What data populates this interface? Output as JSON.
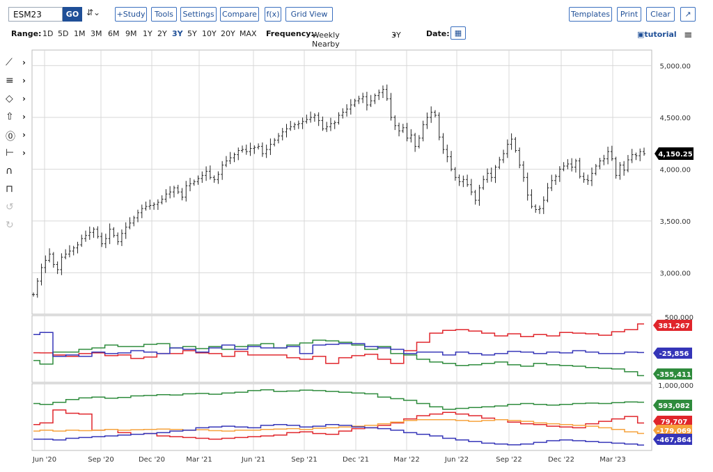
{
  "toolbar": {
    "symbol_value": "ESM23",
    "go_label": "GO",
    "symbol_menu_glyph": "⇵⌄",
    "study_label": "+Study",
    "tools_label": "Tools",
    "settings_label": "Settings",
    "compare_label": "Compare",
    "fx_label": "f(x)",
    "grid_view_label": "Grid View",
    "templates_label": "Templates",
    "print_label": "Print",
    "clear_label": "Clear",
    "expand_icon": "expand-icon"
  },
  "rangebar": {
    "range_label": "Range:",
    "ranges": [
      "1D",
      "5D",
      "1M",
      "3M",
      "6M",
      "9M",
      "1Y",
      "2Y",
      "3Y",
      "5Y",
      "10Y",
      "20Y",
      "MAX"
    ],
    "selected_range": "3Y",
    "frequency_label": "Frequency:",
    "frequency_value": "Weekly Nearby",
    "period_value": "3Y",
    "date_label": "Date:",
    "tutorial_label": "tutorial"
  },
  "sidebar_tools": [
    {
      "icon": "line-tool-icon",
      "glyph": "⟋"
    },
    {
      "icon": "fib-tool-icon",
      "glyph": "≡"
    },
    {
      "icon": "shape-tool-icon",
      "glyph": "◇"
    },
    {
      "icon": "arrow-tool-icon",
      "glyph": "⇧"
    },
    {
      "icon": "text-tool-icon",
      "glyph": "⓪"
    },
    {
      "icon": "measure-tool-icon",
      "glyph": "⊢"
    },
    {
      "icon": "magnet-icon",
      "glyph": "∩"
    },
    {
      "icon": "lock-icon",
      "glyph": "⊓"
    },
    {
      "icon": "undo-icon",
      "glyph": "↺"
    },
    {
      "icon": "redo-icon",
      "glyph": "↻"
    }
  ],
  "colors": {
    "red": "#e0252b",
    "green": "#2e8b3c",
    "blue": "#3535b8",
    "orange": "#f6a23c",
    "price": "#222222",
    "grid": "#d8d8d8"
  },
  "chart_data": [
    {
      "type": "ohlc",
      "panel": "price",
      "y_ticks": [
        "5,000.00",
        "4,500.00",
        "4,000.00",
        "3,500.00",
        "3,000.00"
      ],
      "ylim": [
        2600,
        5150
      ],
      "last_value_label": "4,150.25",
      "x_ticks": [
        "Jun '20",
        "Sep '20",
        "Dec '20",
        "Mar '21",
        "Jun '21",
        "Sep '21",
        "Dec '21",
        "Mar '22",
        "Jun '22",
        "Sep '22",
        "Dec '22",
        "Mar '23"
      ],
      "weekly_close": [
        2790,
        2920,
        3050,
        3120,
        3180,
        3080,
        3030,
        3150,
        3180,
        3210,
        3240,
        3270,
        3330,
        3360,
        3390,
        3420,
        3350,
        3280,
        3330,
        3420,
        3360,
        3300,
        3380,
        3440,
        3480,
        3530,
        3580,
        3620,
        3640,
        3650,
        3660,
        3680,
        3710,
        3760,
        3780,
        3820,
        3780,
        3730,
        3840,
        3860,
        3880,
        3910,
        3940,
        3980,
        3920,
        3900,
        3950,
        4040,
        4080,
        4110,
        4140,
        4180,
        4190,
        4170,
        4200,
        4210,
        4220,
        4150,
        4190,
        4240,
        4280,
        4320,
        4360,
        4390,
        4410,
        4430,
        4440,
        4460,
        4480,
        4500,
        4520,
        4470,
        4390,
        4410,
        4440,
        4450,
        4520,
        4550,
        4580,
        4620,
        4660,
        4680,
        4700,
        4620,
        4660,
        4710,
        4740,
        4770,
        4680,
        4500,
        4420,
        4370,
        4400,
        4300,
        4330,
        4220,
        4300,
        4430,
        4500,
        4550,
        4520,
        4310,
        4190,
        4120,
        4000,
        3920,
        3880,
        3900,
        3850,
        3780,
        3700,
        3820,
        3900,
        3960,
        3920,
        4020,
        4090,
        4150,
        4240,
        4290,
        4180,
        4040,
        3920,
        3750,
        3640,
        3610,
        3620,
        3700,
        3820,
        3890,
        3930,
        4000,
        4030,
        4050,
        4020,
        4080,
        3930,
        3900,
        3890,
        3960,
        4030,
        4080,
        4100,
        4170,
        4100,
        3940,
        4040,
        3990,
        4090,
        4140,
        4130,
        4170,
        4150
      ],
      "title": ""
    },
    {
      "type": "line",
      "panel": "middle",
      "y_tick_top": "500,000",
      "series": [
        {
          "color": "red",
          "last_label": "381,267",
          "values": [
            -30000,
            -30000,
            -60000,
            -80000,
            -40000,
            -30000,
            -70000,
            -60000,
            -110000,
            -90000,
            -40000,
            -40000,
            0,
            -30000,
            -40000,
            -80000,
            -10000,
            -60000,
            -60000,
            -60000,
            -100000,
            -120000,
            -80000,
            -180000,
            -100000,
            -70000,
            -50000,
            -120000,
            -180000,
            0,
            120000,
            250000,
            290000,
            300000,
            280000,
            250000,
            210000,
            240000,
            200000,
            230000,
            210000,
            260000,
            250000,
            240000,
            220000,
            270000,
            300000,
            381267
          ]
        },
        {
          "color": "green",
          "last_label": "-355,411",
          "values": [
            -140000,
            -190000,
            -20000,
            -20000,
            20000,
            40000,
            80000,
            60000,
            60000,
            90000,
            100000,
            40000,
            60000,
            30000,
            60000,
            20000,
            60000,
            80000,
            100000,
            40000,
            80000,
            110000,
            150000,
            140000,
            120000,
            80000,
            20000,
            60000,
            -40000,
            -60000,
            -120000,
            -160000,
            -180000,
            -210000,
            -200000,
            -180000,
            -160000,
            -200000,
            -220000,
            -180000,
            -200000,
            -210000,
            -220000,
            -240000,
            -250000,
            -260000,
            -300000,
            -355411
          ]
        },
        {
          "color": "blue",
          "last_label": "-25,856",
          "values": [
            230000,
            260000,
            -80000,
            -60000,
            -80000,
            -20000,
            -40000,
            -30000,
            0,
            -20000,
            -40000,
            40000,
            20000,
            -20000,
            40000,
            80000,
            20000,
            60000,
            40000,
            40000,
            60000,
            -40000,
            80000,
            90000,
            100000,
            100000,
            60000,
            40000,
            20000,
            -40000,
            -20000,
            -20000,
            -60000,
            -20000,
            -40000,
            -60000,
            -40000,
            -10000,
            -20000,
            -40000,
            -20000,
            -30000,
            0,
            -20000,
            -40000,
            -40000,
            -20000,
            -25856
          ]
        }
      ]
    },
    {
      "type": "line",
      "panel": "bottom",
      "y_tick_top": "1,000,000",
      "series": [
        {
          "color": "green",
          "last_label": "593,082",
          "values": [
            560000,
            540000,
            590000,
            660000,
            700000,
            720000,
            690000,
            710000,
            750000,
            760000,
            780000,
            770000,
            800000,
            810000,
            790000,
            820000,
            840000,
            880000,
            900000,
            860000,
            870000,
            890000,
            880000,
            860000,
            840000,
            820000,
            800000,
            720000,
            680000,
            640000,
            560000,
            480000,
            420000,
            440000,
            460000,
            480000,
            500000,
            540000,
            560000,
            540000,
            520000,
            540000,
            560000,
            570000,
            560000,
            580000,
            600000,
            593082
          ]
        },
        {
          "color": "red",
          "last_label": "79,707",
          "values": [
            40000,
            80000,
            400000,
            320000,
            300000,
            -100000,
            -80000,
            -160000,
            -200000,
            -180000,
            -240000,
            -260000,
            -280000,
            -300000,
            -320000,
            -300000,
            -280000,
            -260000,
            -240000,
            -220000,
            -160000,
            -140000,
            -180000,
            -200000,
            -120000,
            -60000,
            -40000,
            20000,
            80000,
            180000,
            260000,
            300000,
            340000,
            300000,
            260000,
            200000,
            160000,
            100000,
            60000,
            40000,
            0,
            -20000,
            -40000,
            60000,
            120000,
            180000,
            240000,
            79707
          ]
        },
        {
          "color": "orange",
          "last_label": "-179,069",
          "values": [
            -120000,
            -100000,
            -120000,
            -100000,
            -110000,
            -100000,
            -80000,
            -100000,
            -90000,
            -80000,
            -70000,
            -80000,
            -100000,
            -90000,
            -110000,
            -120000,
            -100000,
            -100000,
            -80000,
            -70000,
            -60000,
            -80000,
            -50000,
            -40000,
            -20000,
            0,
            20000,
            60000,
            100000,
            140000,
            160000,
            160000,
            160000,
            140000,
            120000,
            140000,
            160000,
            140000,
            120000,
            80000,
            60000,
            40000,
            20000,
            0,
            -40000,
            -80000,
            -140000,
            -179069
          ]
        },
        {
          "color": "blue",
          "last_label": "-467,864",
          "values": [
            -320000,
            -320000,
            -340000,
            -300000,
            -280000,
            -260000,
            -240000,
            -220000,
            -200000,
            -180000,
            -160000,
            -120000,
            -100000,
            -40000,
            -20000,
            0,
            -20000,
            -40000,
            20000,
            40000,
            20000,
            -20000,
            0,
            40000,
            20000,
            -20000,
            -40000,
            -60000,
            -100000,
            -160000,
            -200000,
            -240000,
            -300000,
            -340000,
            -380000,
            -420000,
            -440000,
            -460000,
            -440000,
            -400000,
            -360000,
            -340000,
            -360000,
            -380000,
            -400000,
            -420000,
            -440000,
            -467864
          ]
        }
      ]
    }
  ]
}
